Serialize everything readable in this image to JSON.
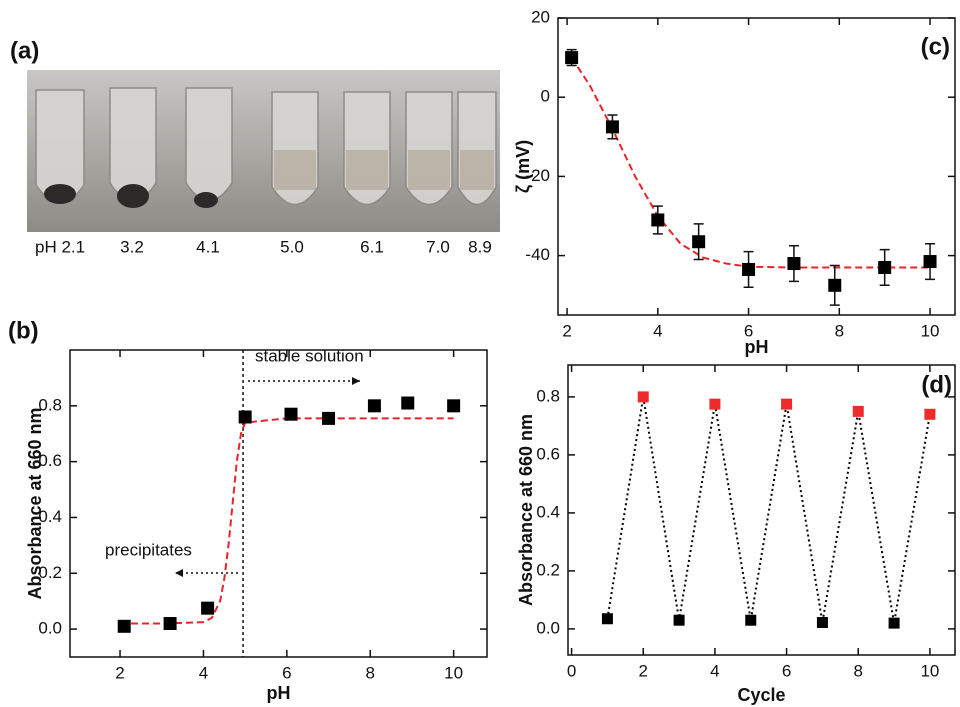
{
  "photo_panel": {
    "label": "(a)",
    "tube_labels": [
      "pH 2.1",
      "3.2",
      "4.1",
      "5.0",
      "6.1",
      "7.0",
      "8.9"
    ]
  },
  "chart_data": [
    {
      "type": "scatter",
      "panel_label": "(b)",
      "xlabel": "pH",
      "ylabel": "Absorbance at 660 nm",
      "xlim": [
        0.8,
        10.8
      ],
      "ylim": [
        -0.1,
        1.0
      ],
      "xticks": [
        2,
        4,
        6,
        8,
        10
      ],
      "yticks": [
        {
          "value": 0,
          "label": "0.0"
        },
        0.2,
        0.4,
        0.6,
        0.8
      ],
      "vline": 4.95,
      "annotations": [
        "stable solution",
        "precipitates"
      ],
      "series": [
        {
          "style": "dashed",
          "color": "#e8242a",
          "x": [
            2,
            3,
            4,
            4.2,
            4.4,
            4.5,
            4.6,
            4.7,
            4.8,
            4.9,
            5,
            6,
            8,
            10
          ],
          "values": [
            0.02,
            0.02,
            0.025,
            0.04,
            0.1,
            0.18,
            0.3,
            0.45,
            0.6,
            0.7,
            0.74,
            0.755,
            0.755,
            0.755
          ]
        },
        {
          "style": "markers",
          "color": "#000000",
          "x": [
            2.1,
            3.2,
            4.1,
            5.0,
            6.1,
            7.0,
            8.1,
            8.9,
            10
          ],
          "values": [
            0.01,
            0.02,
            0.075,
            0.76,
            0.77,
            0.755,
            0.8,
            0.81,
            0.8
          ]
        }
      ]
    },
    {
      "type": "scatter",
      "panel_label": "(c)",
      "xlabel": "pH",
      "ylabel": "ζ (mV)",
      "xlim": [
        1.8,
        10.55
      ],
      "ylim": [
        -55,
        20
      ],
      "xticks": [
        2,
        4,
        6,
        8,
        10
      ],
      "yticks": [
        -40,
        -20,
        0,
        20
      ],
      "series": [
        {
          "style": "dashed",
          "color": "#e8242a",
          "x": [
            2.1,
            2.5,
            3,
            3.5,
            4,
            4.5,
            5,
            5.5,
            6,
            7,
            8,
            9,
            10
          ],
          "values": [
            10,
            3,
            -8,
            -20,
            -30,
            -37,
            -40.5,
            -42,
            -42.8,
            -43,
            -43,
            -43,
            -43
          ]
        },
        {
          "style": "markers",
          "color": "#000000",
          "x": [
            2.1,
            3,
            4,
            4.9,
            6,
            7,
            7.9,
            9,
            10
          ],
          "values": [
            10,
            -7.5,
            -31,
            -36.5,
            -43.5,
            -42,
            -47.5,
            -43,
            -41.5
          ],
          "errors": [
            2,
            3,
            3.5,
            4.5,
            4.5,
            4.5,
            5,
            4.5,
            4.5
          ]
        }
      ]
    },
    {
      "type": "scatter",
      "panel_label": "(d)",
      "xlabel": "Cycle",
      "ylabel": "Absorbance at 660 nm",
      "xlim": [
        -0.1,
        10.7
      ],
      "ylim": [
        -0.09,
        0.91
      ],
      "xticks": [
        0,
        2,
        4,
        6,
        8,
        10
      ],
      "yticks": [
        {
          "value": 0,
          "label": "0.0"
        },
        0.2,
        0.4,
        0.6,
        0.8
      ],
      "series": [
        {
          "style": "dotted-markers",
          "color": "#000000",
          "x": [
            1,
            2,
            3,
            4,
            5,
            6,
            7,
            8,
            9,
            10
          ],
          "values": [
            0.035,
            0.8,
            0.03,
            0.775,
            0.03,
            0.775,
            0.022,
            0.75,
            0.02,
            0.74
          ],
          "marker_colors": [
            "#000000",
            "#ee2b2b",
            "#000000",
            "#ee2b2b",
            "#000000",
            "#ee2b2b",
            "#000000",
            "#ee2b2b",
            "#000000",
            "#ee2b2b"
          ]
        }
      ]
    }
  ]
}
